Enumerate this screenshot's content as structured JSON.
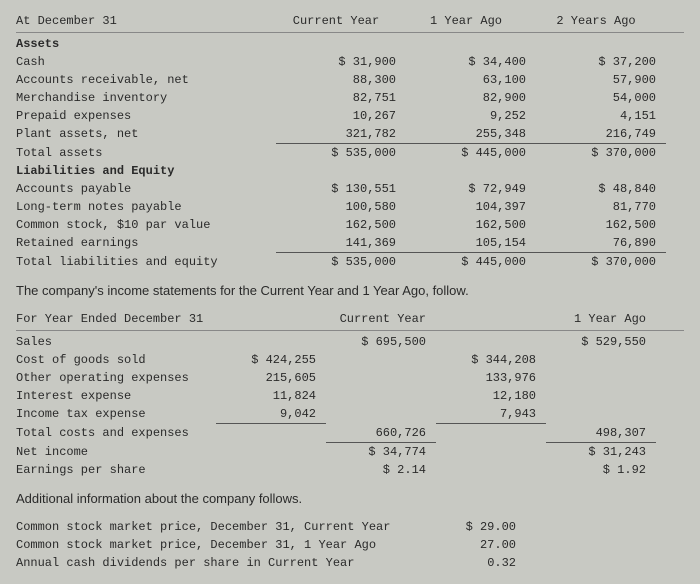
{
  "balance_sheet": {
    "header": {
      "title": "At December 31",
      "col1": "Current Year",
      "col2": "1 Year Ago",
      "col3": "2 Years Ago"
    },
    "assets_title": "Assets",
    "assets": [
      {
        "label": "Cash",
        "c1": "$ 31,900",
        "c2": "$ 34,400",
        "c3": "$ 37,200"
      },
      {
        "label": "Accounts receivable, net",
        "c1": "88,300",
        "c2": "63,100",
        "c3": "57,900"
      },
      {
        "label": "Merchandise inventory",
        "c1": "82,751",
        "c2": "82,900",
        "c3": "54,000"
      },
      {
        "label": "Prepaid expenses",
        "c1": "10,267",
        "c2": "9,252",
        "c3": "4,151"
      },
      {
        "label": "Plant assets, net",
        "c1": "321,782",
        "c2": "255,348",
        "c3": "216,749"
      }
    ],
    "total_assets": {
      "label": "Total assets",
      "c1": "$ 535,000",
      "c2": "$ 445,000",
      "c3": "$ 370,000"
    },
    "liab_title": "Liabilities and Equity",
    "liab": [
      {
        "label": "Accounts payable",
        "c1": "$ 130,551",
        "c2": "$ 72,949",
        "c3": "$ 48,840"
      },
      {
        "label": "Long-term notes payable",
        "c1": "100,580",
        "c2": "104,397",
        "c3": "81,770"
      },
      {
        "label": "Common stock, $10 par value",
        "c1": "162,500",
        "c2": "162,500",
        "c3": "162,500"
      },
      {
        "label": "Retained earnings",
        "c1": "141,369",
        "c2": "105,154",
        "c3": "76,890"
      }
    ],
    "total_liab": {
      "label": "Total liabilities and equity",
      "c1": "$ 535,000",
      "c2": "$ 445,000",
      "c3": "$ 370,000"
    }
  },
  "income_intro": "The company's income statements for the Current Year and 1 Year Ago, follow.",
  "income": {
    "header": {
      "title": "For Year Ended December 31",
      "col1": "Current Year",
      "col2": "1 Year Ago"
    },
    "sales": {
      "label": "Sales",
      "c1": "$ 695,500",
      "c2": "$ 529,550"
    },
    "costs": [
      {
        "label": "Cost of goods sold",
        "s1": "$ 424,255",
        "s2": "$ 344,208"
      },
      {
        "label": "Other operating expenses",
        "s1": "215,605",
        "s2": "133,976"
      },
      {
        "label": "Interest expense",
        "s1": "11,824",
        "s2": "12,180"
      },
      {
        "label": "Income tax expense",
        "s1": "9,042",
        "s2": "7,943"
      }
    ],
    "total_costs": {
      "label": "Total costs and expenses",
      "c1": "660,726",
      "c2": "498,307"
    },
    "net_income": {
      "label": "Net income",
      "c1": "$ 34,774",
      "c2": "$ 31,243"
    },
    "eps": {
      "label": "Earnings per share",
      "c1": "$ 2.14",
      "c2": "$ 1.92"
    }
  },
  "addl_intro": "Additional information about the company follows.",
  "addl": [
    {
      "label": "Common stock market price, December 31, Current Year",
      "val": "$ 29.00"
    },
    {
      "label": "Common stock market price, December 31, 1 Year Ago",
      "val": "27.00"
    },
    {
      "label": "Annual cash dividends per share in Current Year",
      "val": "0.32"
    }
  ]
}
